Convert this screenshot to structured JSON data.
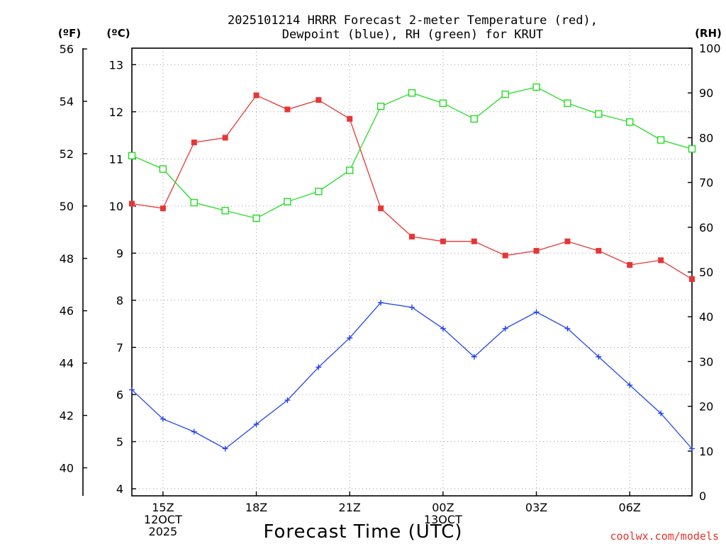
{
  "chart_data": {
    "type": "line",
    "title": [
      "2025101214 HRRR Forecast 2-meter Temperature (red),",
      "Dewpoint (blue), RH (green) for KRUT"
    ],
    "xlabel": "Forecast Time (UTC)",
    "credit": "coolwx.com/models",
    "units": {
      "fahrenheit": "(ºF)",
      "celsius": "(ºC)",
      "rh": "(RH)"
    },
    "x_hours": [
      14,
      15,
      16,
      17,
      18,
      19,
      20,
      21,
      22,
      23,
      24,
      25,
      26,
      27,
      28,
      29,
      30,
      31,
      32
    ],
    "xlim": [
      14,
      32
    ],
    "x_ticks": [
      {
        "hour": 15,
        "lines": [
          "15Z",
          "12OCT",
          "2025"
        ]
      },
      {
        "hour": 18,
        "lines": [
          "18Z"
        ]
      },
      {
        "hour": 21,
        "lines": [
          "21Z"
        ]
      },
      {
        "hour": 24,
        "lines": [
          "00Z",
          "13OCT"
        ]
      },
      {
        "hour": 27,
        "lines": [
          "03Z"
        ]
      },
      {
        "hour": 30,
        "lines": [
          "06Z"
        ]
      }
    ],
    "celsius_axis": {
      "ylim": [
        3.85,
        13.35
      ],
      "ticks": [
        4,
        5,
        6,
        7,
        8,
        9,
        10,
        11,
        12,
        13
      ]
    },
    "fahrenheit_ticks": [
      40,
      42,
      44,
      46,
      48,
      50,
      52,
      54,
      56
    ],
    "rh_axis": {
      "ylim": [
        0,
        100
      ],
      "ticks": [
        0,
        10,
        20,
        30,
        40,
        50,
        60,
        70,
        80,
        90,
        100
      ]
    },
    "series": [
      {
        "name": "Temperature",
        "axis": "celsius",
        "color": "#e83535",
        "marker": "filled-square",
        "values": [
          10.05,
          9.95,
          11.35,
          11.45,
          12.35,
          12.05,
          12.25,
          11.85,
          9.95,
          9.35,
          9.25,
          9.25,
          8.95,
          9.05,
          9.25,
          9.05,
          8.75,
          8.85,
          8.45
        ]
      },
      {
        "name": "Dewpoint",
        "axis": "celsius",
        "color": "#2244ee",
        "marker": "plus",
        "values": [
          6.1,
          5.48,
          5.21,
          4.85,
          5.37,
          5.88,
          6.58,
          7.2,
          7.95,
          7.85,
          7.4,
          6.8,
          7.4,
          7.75,
          7.4,
          6.8,
          6.2,
          5.6,
          4.85
        ]
      },
      {
        "name": "Relative Humidity",
        "axis": "rh",
        "color": "#22dd22",
        "marker": "open-square",
        "values": [
          76.0,
          73.0,
          65.5,
          63.7,
          62.0,
          65.7,
          68.0,
          72.7,
          87.0,
          90.0,
          87.7,
          84.2,
          89.7,
          91.3,
          87.7,
          85.3,
          83.5,
          79.5,
          77.5
        ]
      }
    ]
  }
}
